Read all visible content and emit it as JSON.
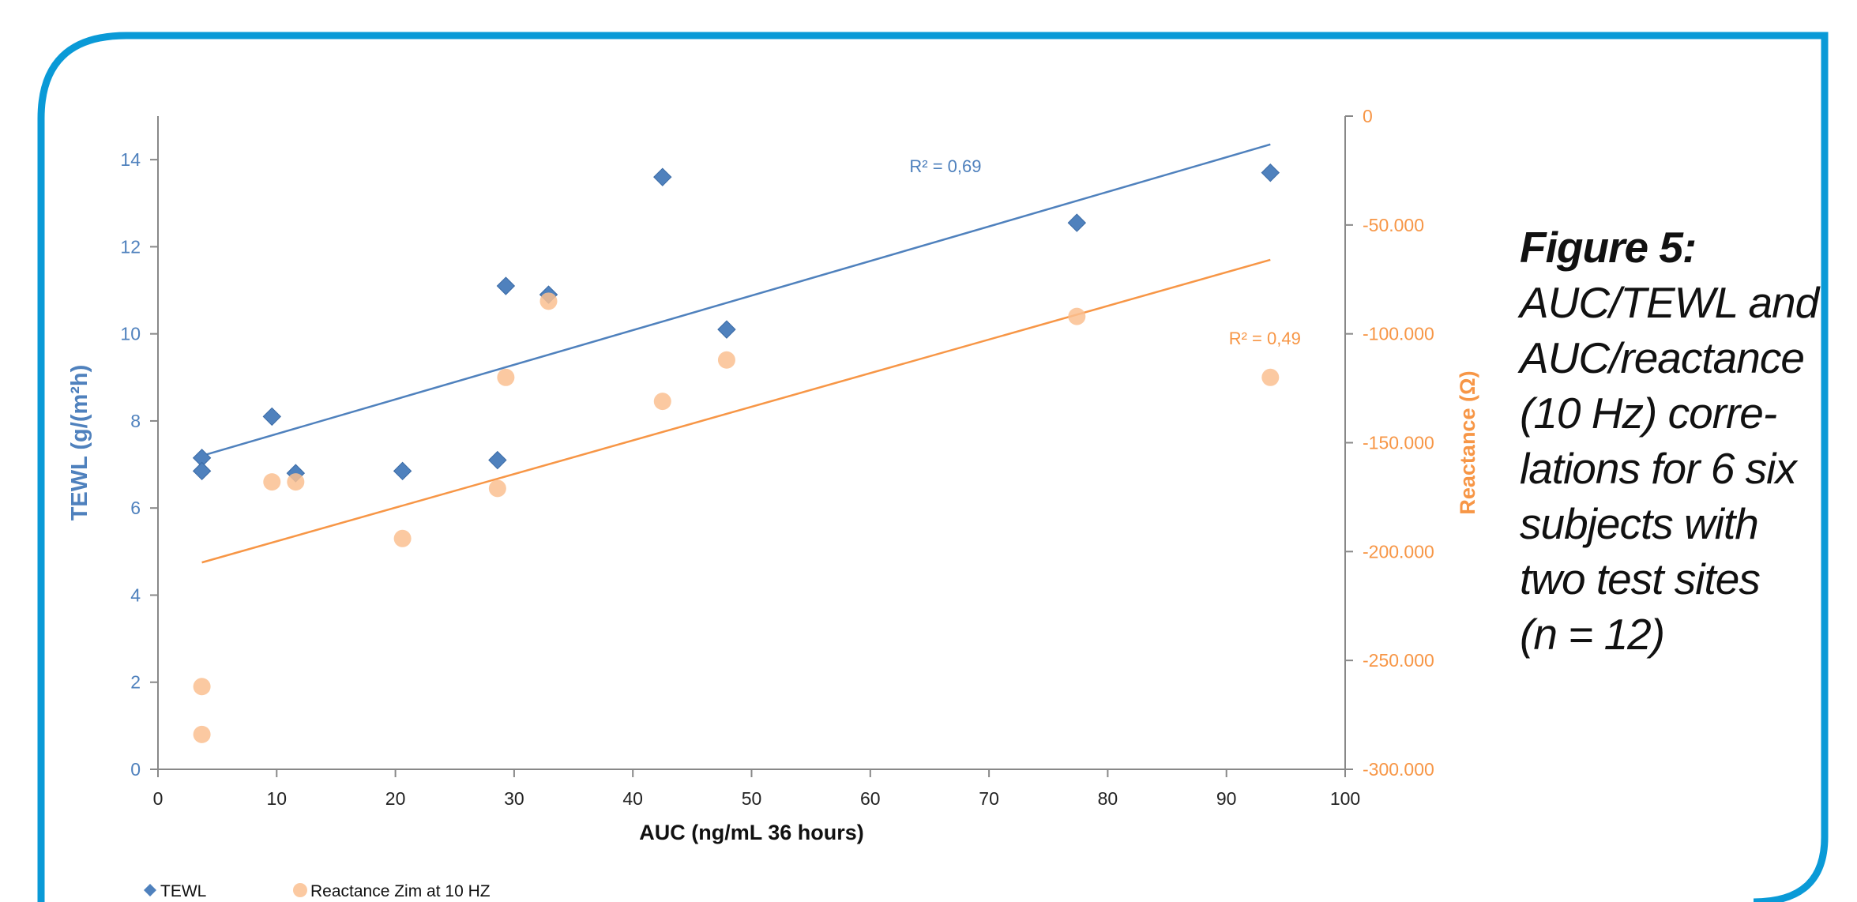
{
  "chart_data": {
    "type": "scatter",
    "x_axis": {
      "label": "AUC (ng/mL 36 hours)",
      "range": [
        0,
        100
      ],
      "ticks": [
        "0",
        "10",
        "20",
        "30",
        "40",
        "50",
        "60",
        "70",
        "80",
        "90",
        "100"
      ]
    },
    "y_axis_left": {
      "label": "TEWL (g/(m²h)",
      "range": [
        0,
        15
      ],
      "ticks": [
        "0",
        "2",
        "4",
        "6",
        "8",
        "10",
        "12",
        "14"
      ],
      "color": "#4f81bd"
    },
    "y_axis_right": {
      "label": "Reactance (Ω)",
      "range": [
        -300000,
        0
      ],
      "ticks": [
        "-300.000",
        "-250.000",
        "-200.000",
        "-150.000",
        "-100.000",
        "-50.000",
        "0"
      ],
      "color": "#f79646"
    },
    "series": [
      {
        "name": "TEWL",
        "axis": "left",
        "marker": "diamond",
        "color": "#4f81bd",
        "points": [
          {
            "x": 3.7,
            "y": 7.15
          },
          {
            "x": 3.7,
            "y": 6.85
          },
          {
            "x": 9.6,
            "y": 8.1
          },
          {
            "x": 11.6,
            "y": 6.8
          },
          {
            "x": 20.6,
            "y": 6.85
          },
          {
            "x": 28.6,
            "y": 7.1
          },
          {
            "x": 29.3,
            "y": 11.1
          },
          {
            "x": 32.9,
            "y": 10.9
          },
          {
            "x": 42.5,
            "y": 13.6
          },
          {
            "x": 47.9,
            "y": 10.1
          },
          {
            "x": 77.4,
            "y": 12.55
          },
          {
            "x": 93.7,
            "y": 13.7
          }
        ],
        "trendline": {
          "x": [
            3.7,
            93.7
          ],
          "y": [
            7.2,
            14.35
          ]
        },
        "r2_label": "R² = 0,69"
      },
      {
        "name": "Reactance Zim at 10 HZ",
        "axis": "right",
        "marker": "circle",
        "color": "#fac090",
        "points": [
          {
            "x": 3.7,
            "y": -262000
          },
          {
            "x": 3.7,
            "y": -284000
          },
          {
            "x": 9.6,
            "y": -168000
          },
          {
            "x": 11.6,
            "y": -168000
          },
          {
            "x": 20.6,
            "y": -194000
          },
          {
            "x": 28.6,
            "y": -171000
          },
          {
            "x": 29.3,
            "y": -120000
          },
          {
            "x": 32.9,
            "y": -85000
          },
          {
            "x": 42.5,
            "y": -131000
          },
          {
            "x": 47.9,
            "y": -112000
          },
          {
            "x": 77.4,
            "y": -92000
          },
          {
            "x": 93.7,
            "y": -120000
          }
        ],
        "trendline": {
          "x": [
            3.7,
            93.7
          ],
          "y": [
            -205000,
            -66000
          ],
          "color": "#f79646"
        },
        "r2_label": "R² = 0,49"
      }
    ],
    "legend": {
      "placement": "bottom-left"
    }
  },
  "caption": {
    "title": "Figure 5:",
    "body": "AUC/TEWL and\nAUC/reactance\n(10 Hz) corre-\nlations for 6 six\nsubjects with\ntwo test sites\n(n = 12)"
  },
  "frame_color": "#0a9ad7"
}
